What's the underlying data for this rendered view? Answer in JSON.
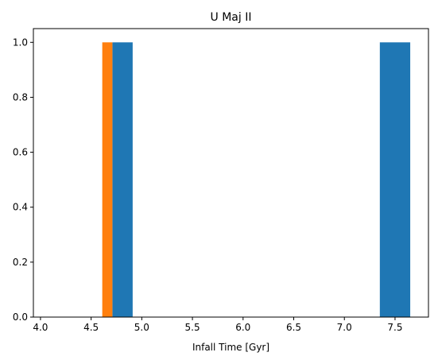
{
  "chart_data": {
    "type": "bar",
    "title": "U Maj II",
    "xlabel": "Infall Time [Gyr]",
    "ylabel": "",
    "xlim": [
      3.93,
      7.83
    ],
    "ylim": [
      0,
      1.05
    ],
    "xticks": [
      "4.0",
      "4.5",
      "5.0",
      "5.5",
      "6.0",
      "6.5",
      "7.0",
      "7.5"
    ],
    "yticks": [
      "0.0",
      "0.2",
      "0.4",
      "0.6",
      "0.8",
      "1.0"
    ],
    "grid": false,
    "series": [
      {
        "color": "#1f77b4",
        "bars": [
          {
            "x0": 4.71,
            "x1": 4.91,
            "value": 1.0
          },
          {
            "x0": 7.35,
            "x1": 7.65,
            "value": 1.0
          }
        ]
      },
      {
        "color": "#ff7f0e",
        "bars": [
          {
            "x0": 4.61,
            "x1": 4.71,
            "value": 1.0
          }
        ]
      }
    ]
  }
}
